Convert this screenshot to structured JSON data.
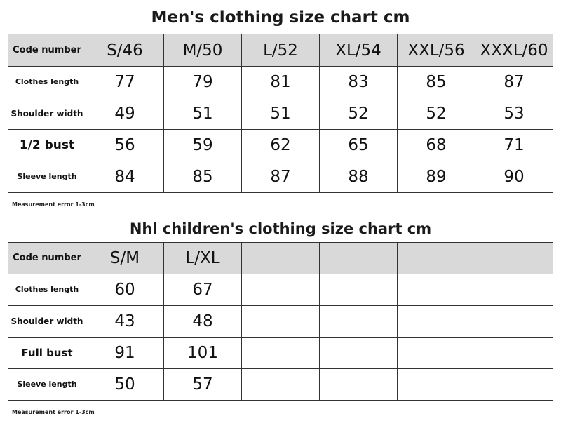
{
  "men": {
    "title": "Men's clothing size chart cm",
    "code_label": "Code number",
    "sizes": [
      "S/46",
      "M/50",
      "L/52",
      "XL/54",
      "XXL/56",
      "XXXL/60"
    ],
    "rows": [
      {
        "label": "Clothes length",
        "values": [
          "77",
          "79",
          "81",
          "83",
          "85",
          "87"
        ]
      },
      {
        "label": "Shoulder width",
        "values": [
          "49",
          "51",
          "51",
          "52",
          "52",
          "53"
        ]
      },
      {
        "label": "1/2 bust",
        "values": [
          "56",
          "59",
          "62",
          "65",
          "68",
          "71"
        ]
      },
      {
        "label": "Sleeve length",
        "values": [
          "84",
          "85",
          "87",
          "88",
          "89",
          "90"
        ]
      }
    ],
    "note": "Measurement error 1-3cm"
  },
  "kids": {
    "title": "Nhl children's clothing size chart cm",
    "code_label": "Code number",
    "sizes": [
      "S/M",
      "L/XL",
      "",
      "",
      "",
      ""
    ],
    "rows": [
      {
        "label": "Clothes length",
        "values": [
          "60",
          "67",
          "",
          "",
          "",
          ""
        ]
      },
      {
        "label": "Shoulder width",
        "values": [
          "43",
          "48",
          "",
          "",
          "",
          ""
        ]
      },
      {
        "label": "Full bust",
        "values": [
          "91",
          "101",
          "",
          "",
          "",
          ""
        ]
      },
      {
        "label": "Sleeve length",
        "values": [
          "50",
          "57",
          "",
          "",
          "",
          ""
        ]
      }
    ],
    "note": "Measurement error 1-3cm"
  }
}
